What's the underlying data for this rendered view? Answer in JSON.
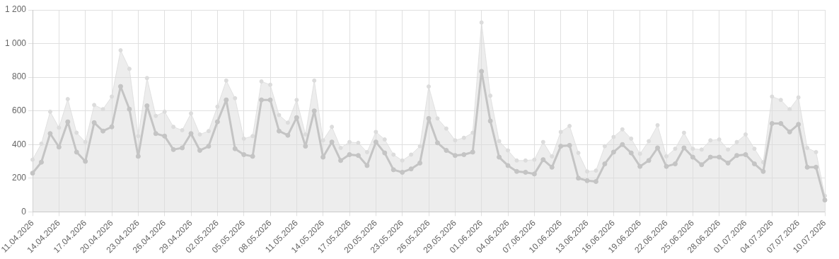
{
  "chart_data": {
    "type": "line",
    "grid": true,
    "marker": "circle",
    "categories": [
      "11.04.2026",
      null,
      null,
      "14.04.2026",
      null,
      null,
      "17.04.2026",
      null,
      null,
      "20.04.2026",
      null,
      null,
      "23.04.2026",
      null,
      null,
      "26.04.2026",
      null,
      null,
      "29.04.2026",
      null,
      null,
      "02.05.2026",
      null,
      null,
      "05.05.2026",
      null,
      null,
      "08.05.2026",
      null,
      null,
      "11.05.2026",
      null,
      null,
      "14.05.2026",
      null,
      null,
      "17.05.2026",
      null,
      null,
      "20.05.2026",
      null,
      null,
      "23.05.2026",
      null,
      null,
      "26.05.2026",
      null,
      null,
      "29.05.2026",
      null,
      null,
      "01.06.2026",
      null,
      null,
      "04.06.2026",
      null,
      null,
      "07.06.2026",
      null,
      null,
      "10.06.2026",
      null,
      null,
      "13.06.2026",
      null,
      null,
      "16.06.2026",
      null,
      null,
      "19.06.2026",
      null,
      null,
      "22.06.2026",
      null,
      null,
      "25.06.2026",
      null,
      null,
      "28.06.2026",
      null,
      null,
      "01.07.2026",
      null,
      null,
      "04.07.2026",
      null,
      null,
      "07.07.2026",
      null,
      null,
      "10.07.2026"
    ],
    "ylim": [
      0,
      1200
    ],
    "yticks": [
      0,
      200,
      400,
      600,
      800,
      {
        "value": 1000,
        "label": "1 000"
      },
      {
        "value": 1200,
        "label": "1 200"
      }
    ],
    "series": [
      {
        "type": "area",
        "color": "#dcdcdc",
        "values": [
          310,
          405,
          595,
          500,
          670,
          470,
          415,
          635,
          610,
          685,
          960,
          850,
          450,
          795,
          570,
          595,
          505,
          485,
          585,
          460,
          480,
          625,
          780,
          675,
          435,
          450,
          775,
          755,
          575,
          530,
          665,
          460,
          780,
          425,
          505,
          380,
          415,
          410,
          355,
          475,
          430,
          340,
          305,
          340,
          390,
          745,
          555,
          495,
          425,
          440,
          470,
          1125,
          690,
          420,
          365,
          305,
          305,
          310,
          415,
          330,
          475,
          510,
          350,
          240,
          245,
          390,
          445,
          490,
          435,
          345,
          420,
          515,
          330,
          375,
          470,
          375,
          370,
          425,
          430,
          370,
          415,
          460,
          375,
          295,
          685,
          665,
          610,
          680,
          380,
          355,
          95
        ]
      },
      {
        "type": "line",
        "color": "#c4c4c4",
        "values": [
          230,
          295,
          465,
          385,
          535,
          355,
          300,
          530,
          480,
          505,
          745,
          610,
          330,
          630,
          465,
          450,
          370,
          380,
          465,
          365,
          390,
          535,
          665,
          375,
          340,
          330,
          665,
          665,
          480,
          455,
          560,
          390,
          600,
          325,
          415,
          305,
          340,
          335,
          275,
          415,
          350,
          250,
          235,
          255,
          290,
          555,
          410,
          365,
          335,
          340,
          355,
          835,
          540,
          325,
          275,
          240,
          235,
          225,
          310,
          265,
          390,
          395,
          200,
          185,
          180,
          285,
          355,
          400,
          350,
          270,
          305,
          380,
          270,
          285,
          380,
          325,
          280,
          325,
          325,
          290,
          335,
          340,
          285,
          240,
          525,
          525,
          475,
          520,
          265,
          265,
          70
        ]
      }
    ]
  }
}
